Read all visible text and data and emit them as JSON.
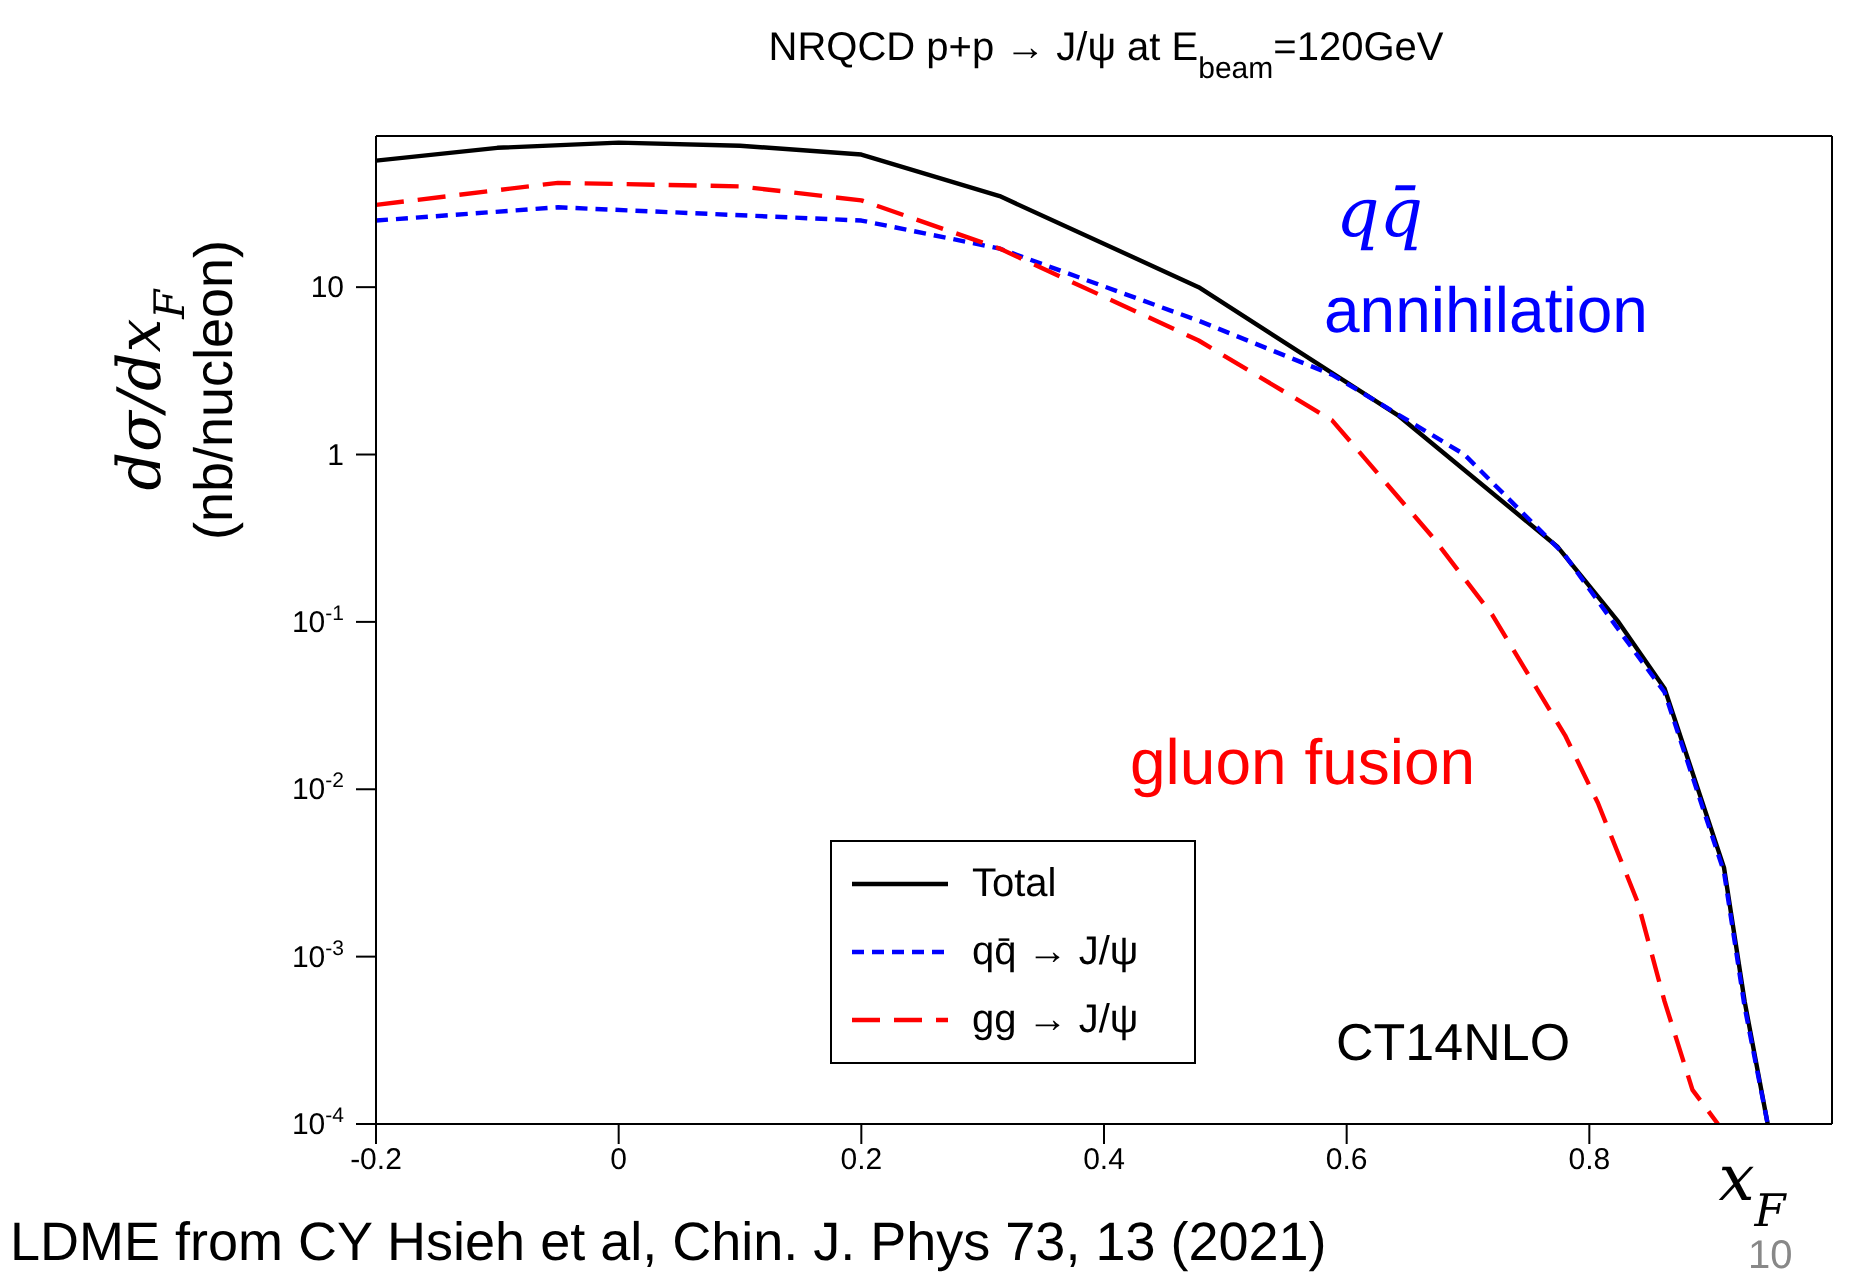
{
  "chart_data": {
    "type": "line",
    "title": "NRQCD p+p → J/ψ at E$_{beam}$=120GeV",
    "xlabel": "x$_{F}$",
    "ylabel": "dσ/dx$_{F}$\n(nb/nucleon)",
    "annotations": [
      "qq̄",
      "annihilation",
      "gluon fusion",
      "CT14NLO",
      "LDME from CY Hsieh et al, Chin. J. Phys 73, 13 (2021)",
      "10"
    ],
    "log": "y",
    "xlim": [
      -0.2,
      1.0
    ],
    "xticks": [
      -0.2,
      0,
      0.2,
      0.4,
      0.6,
      0.8
    ],
    "ylim": [
      0.0001,
      80
    ],
    "yticks": [
      {
        "value": 0.0001,
        "label": "10$^{-4}$"
      },
      {
        "value": 0.001,
        "label": "10$^{-3}$"
      },
      {
        "value": 0.01,
        "label": "10$^{-2}$"
      },
      {
        "value": 0.1,
        "label": "10$^{-1}$"
      },
      1,
      10
    ],
    "grid": false,
    "legend": "bottom",
    "marker": "none",
    "series": [
      {
        "name": "Total",
        "color": "#000000",
        "line_style": "solid",
        "x": [
          -0.2,
          -0.1,
          0,
          0.1,
          0.2,
          0.314,
          0.478,
          0.643,
          0.774,
          0.824,
          0.862,
          0.911,
          0.928,
          0.947
        ],
        "values": [
          57,
          68,
          73,
          70,
          62,
          35,
          10,
          1.7,
          0.28,
          0.1,
          0.04,
          0.0034,
          0.00054,
          0.0001
        ]
      },
      {
        "name": "qq̄ → J/ψ",
        "color": "#0000ff",
        "line_style": "dotted",
        "x": [
          -0.2,
          -0.05,
          0.2,
          0.314,
          0.478,
          0.588,
          0.697,
          0.78,
          0.824,
          0.862,
          0.911,
          0.928,
          0.947
        ],
        "values": [
          25,
          30,
          25,
          17,
          6.3,
          3,
          1,
          0.25,
          0.09,
          0.038,
          0.0032,
          0.0005,
          0.0001
        ]
      },
      {
        "name": "gg → J/ψ",
        "color": "#ff0000",
        "line_style": "dashed",
        "x": [
          -0.2,
          -0.05,
          0.1,
          0.2,
          0.314,
          0.478,
          0.588,
          0.671,
          0.72,
          0.78,
          0.807,
          0.84,
          0.862,
          0.885,
          0.906
        ],
        "values": [
          31,
          42,
          40,
          33,
          17,
          4.8,
          1.6,
          0.32,
          0.11,
          0.021,
          0.0083,
          0.0021,
          0.00054,
          0.00016,
          0.0001
        ]
      }
    ]
  }
}
